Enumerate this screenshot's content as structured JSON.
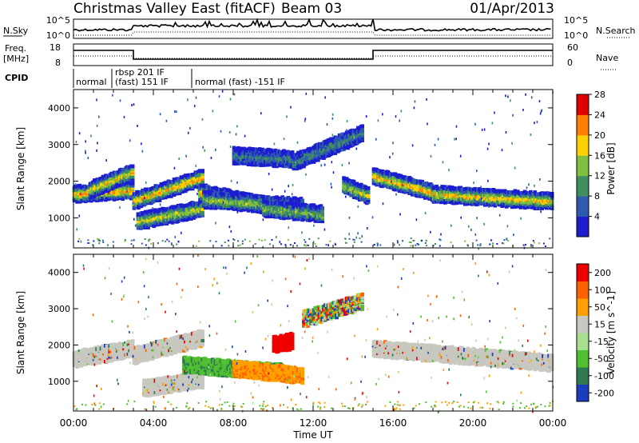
{
  "header": {
    "title": "Christmas Valley East (fitACF)",
    "beam": "Beam 03",
    "date": "01/Apr/2013"
  },
  "top_panels": {
    "nsky_label": "N.Sky",
    "nsky_ticks": [
      "10^5",
      "10^0"
    ],
    "nsky_right_ticks": [
      "10^5",
      "10^0"
    ],
    "nsearch_label": "N.Search",
    "freq_label_1": "Freq.",
    "freq_label_2": "[MHz]",
    "freq_ticks": [
      "18",
      "8"
    ],
    "nave_ticks": [
      "60",
      "0"
    ],
    "nave_label": "Nave",
    "cpid_label": "CPID",
    "cpid_entries": [
      {
        "label": "normal"
      },
      {
        "label": "rbsp 201 IF"
      },
      {
        "label": "(fast) 151 IF"
      },
      {
        "label": "normal (fast) -151 IF"
      }
    ]
  },
  "x_axis": {
    "label": "Time UT",
    "ticks": [
      "00:00",
      "04:00",
      "08:00",
      "12:00",
      "16:00",
      "20:00",
      "00:00"
    ]
  },
  "chart_data": [
    {
      "type": "heatmap",
      "name": "power",
      "xlabel": "Time UT",
      "ylabel": "Slant Range [km]",
      "x_range_hours": [
        0,
        24
      ],
      "ylim": [
        180,
        4500
      ],
      "y_ticks": [
        "1000",
        "2000",
        "3000",
        "4000"
      ],
      "colorbar_label": "Power [dB]",
      "colorbar_ticks": [
        "4",
        "8",
        "12",
        "16",
        "20",
        "24",
        "28"
      ],
      "colorbar_colors": [
        "#1c1cd0",
        "#2e5bb0",
        "#3f8f60",
        "#7fc040",
        "#ffd000",
        "#ff8000",
        "#e00000"
      ],
      "bands": [
        {
          "t0": 0.0,
          "t1": 3.0,
          "r0": 1650,
          "r1": 1750,
          "peak": 0.85
        },
        {
          "t0": 0.8,
          "t1": 3.0,
          "r0": 1750,
          "r1": 2250,
          "peak": 0.7
        },
        {
          "t0": 3.0,
          "t1": 6.5,
          "r0": 1450,
          "r1": 2100,
          "peak": 0.8
        },
        {
          "t0": 3.2,
          "t1": 6.5,
          "r0": 900,
          "r1": 1250,
          "peak": 0.65
        },
        {
          "t0": 6.3,
          "t1": 10.0,
          "r0": 1700,
          "r1": 1300,
          "peak": 0.8
        },
        {
          "t0": 6.5,
          "t1": 11.5,
          "r0": 1500,
          "r1": 1300,
          "peak": 0.55
        },
        {
          "t0": 9.5,
          "t1": 12.5,
          "r0": 1250,
          "r1": 1100,
          "peak": 0.5
        },
        {
          "t0": 8.0,
          "t1": 11.0,
          "r0": 2700,
          "r1": 2600,
          "peak": 0.25
        },
        {
          "t0": 11.0,
          "t1": 14.5,
          "r0": 2500,
          "r1": 3300,
          "peak": 0.3
        },
        {
          "t0": 13.5,
          "t1": 14.8,
          "r0": 1900,
          "r1": 1600,
          "peak": 0.6
        },
        {
          "t0": 15.0,
          "t1": 18.0,
          "r0": 2150,
          "r1": 1700,
          "peak": 0.8
        },
        {
          "t0": 18.0,
          "t1": 24.0,
          "r0": 1650,
          "r1": 1450,
          "peak": 0.75
        }
      ]
    },
    {
      "type": "heatmap",
      "name": "velocity",
      "xlabel": "Time UT",
      "ylabel": "Slant Range [km]",
      "x_range_hours": [
        0,
        24
      ],
      "ylim": [
        180,
        4500
      ],
      "y_ticks": [
        "1000",
        "2000",
        "3000",
        "4000"
      ],
      "colorbar_label": "Velocity [m s^-1]",
      "colorbar_ticks": [
        "200",
        "100",
        "50",
        "15",
        "-15",
        "-50",
        "-100",
        "-200"
      ],
      "colorbar_colors": [
        "#1c3cc0",
        "#2f7a50",
        "#50c030",
        "#a8e090",
        "#c8c8c0",
        "#ffa000",
        "#ff6000",
        "#ee0000"
      ],
      "bands": [
        {
          "t0": 0.0,
          "t1": 3.0,
          "r0": 1600,
          "r1": 1900,
          "kind": "ground"
        },
        {
          "t0": 3.0,
          "t1": 6.5,
          "r0": 1700,
          "r1": 2200,
          "kind": "ground"
        },
        {
          "t0": 3.5,
          "t1": 6.5,
          "r0": 800,
          "r1": 1050,
          "kind": "ground"
        },
        {
          "t0": 5.5,
          "t1": 10.5,
          "r0": 1450,
          "r1": 1250,
          "kind": "green"
        },
        {
          "t0": 8.0,
          "t1": 11.5,
          "r0": 1350,
          "r1": 1150,
          "kind": "orange"
        },
        {
          "t0": 10.0,
          "t1": 11.0,
          "r0": 2000,
          "r1": 2100,
          "kind": "red"
        },
        {
          "t0": 11.5,
          "t1": 14.5,
          "r0": 2700,
          "r1": 3200,
          "kind": "mixed"
        },
        {
          "t0": 15.0,
          "t1": 24.0,
          "r0": 1900,
          "r1": 1500,
          "kind": "ground"
        }
      ]
    }
  ]
}
